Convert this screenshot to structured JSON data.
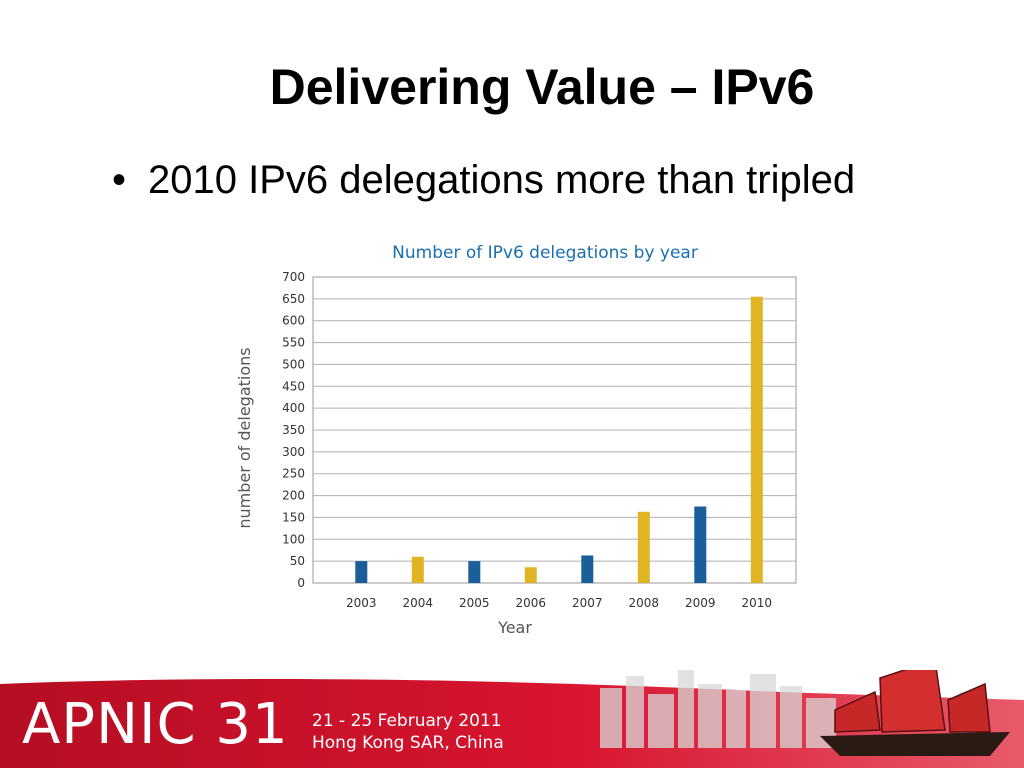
{
  "slide": {
    "title": "Delivering Value – IPv6",
    "bullet_symbol": "•",
    "bullet_text": "2010 IPv6 delegations more than tripled"
  },
  "footer": {
    "logo_text": "APNIC 31",
    "date_line": "21 - 25 February 2011",
    "location_line": "Hong Kong SAR, China",
    "band_color": "#c8102e"
  },
  "chart_data": {
    "type": "bar",
    "title": "Number of IPv6 delegations by year",
    "xlabel": "Year",
    "ylabel": "number of delegations",
    "categories": [
      "2003",
      "2004",
      "2005",
      "2006",
      "2007",
      "2008",
      "2009",
      "2010"
    ],
    "values": [
      50,
      60,
      50,
      36,
      63,
      163,
      175,
      655
    ],
    "bar_colors": [
      "#1a5e9a",
      "#e0b422",
      "#1a5e9a",
      "#e0b422",
      "#1a5e9a",
      "#e0b422",
      "#1a5e9a",
      "#e0b422"
    ],
    "ylim": [
      0,
      700
    ],
    "yticks": [
      0,
      50,
      100,
      150,
      200,
      250,
      300,
      350,
      400,
      450,
      500,
      550,
      600,
      650,
      700
    ],
    "grid": true,
    "title_color": "#1a6fb0"
  }
}
